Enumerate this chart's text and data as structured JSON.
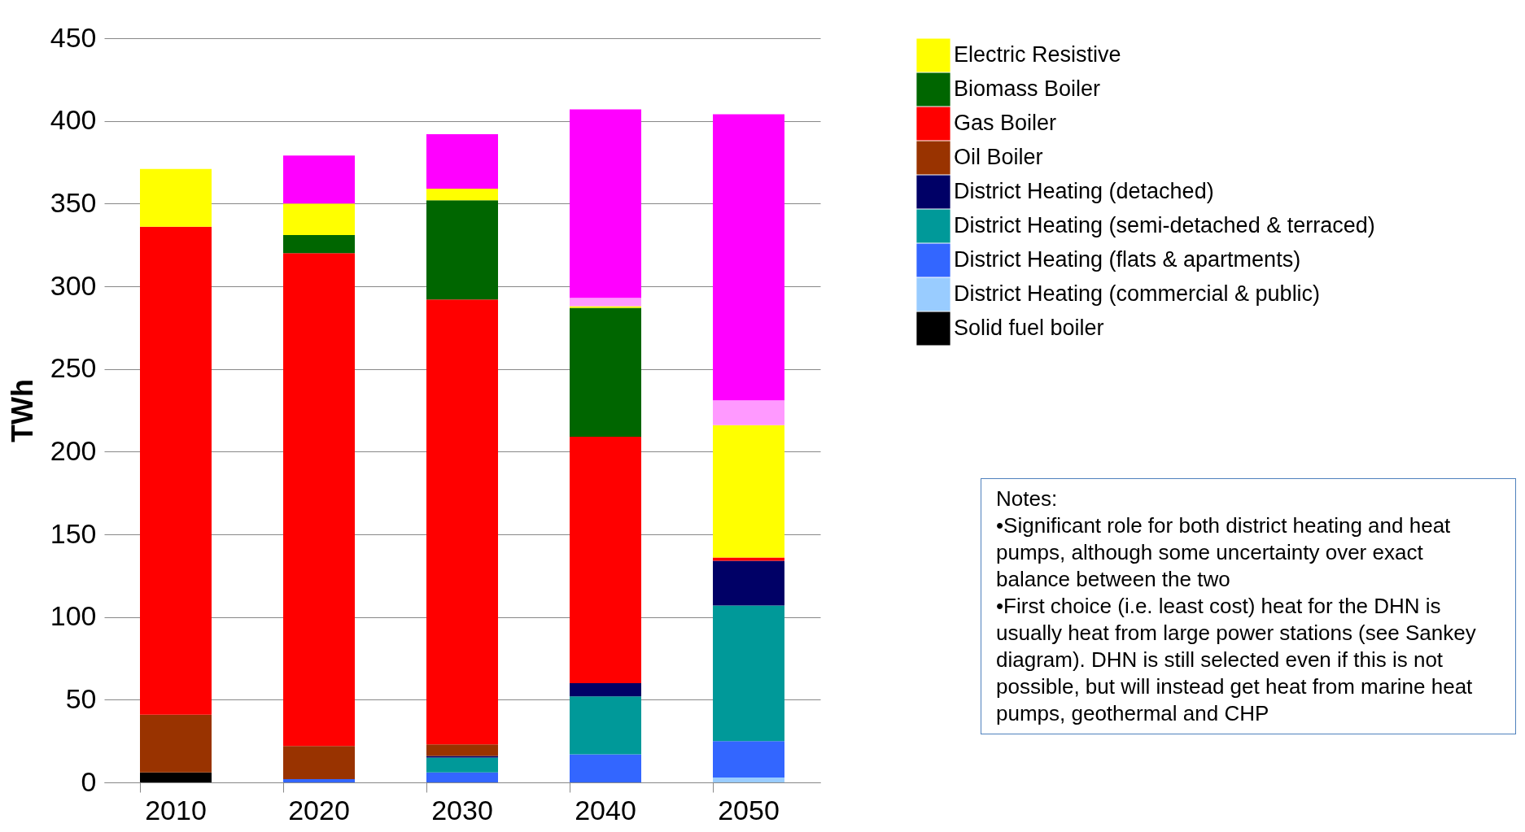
{
  "chart_data": {
    "type": "bar",
    "stacked": true,
    "ylabel": "TWh",
    "categories": [
      "2010",
      "2020",
      "2030",
      "2040",
      "2050"
    ],
    "ylim": [
      0,
      450
    ],
    "yticks": [
      0,
      50,
      100,
      150,
      200,
      250,
      300,
      350,
      400,
      450
    ],
    "grid": "y",
    "legend": "top right",
    "series": [
      {
        "name": "Solid fuel boiler",
        "color": "#000000",
        "values": [
          6,
          0,
          0,
          0,
          0
        ]
      },
      {
        "name": "District Heating (commercial & public)",
        "color": "#99ccff",
        "values": [
          0,
          0,
          0,
          0,
          3
        ]
      },
      {
        "name": "District Heating (flats & apartments)",
        "color": "#3366ff",
        "values": [
          0,
          2,
          6,
          17,
          22
        ]
      },
      {
        "name": "District Heating (semi-detached & terraced)",
        "color": "#009999",
        "values": [
          0,
          0,
          9,
          35,
          82
        ]
      },
      {
        "name": "District Heating (detached)",
        "color": "#000066",
        "values": [
          0,
          0,
          1,
          8,
          27
        ]
      },
      {
        "name": "Oil Boiler",
        "color": "#993300",
        "values": [
          35,
          20,
          7,
          0,
          0
        ]
      },
      {
        "name": "Gas Boiler",
        "color": "#ff0000",
        "values": [
          295,
          298,
          269,
          149,
          2
        ]
      },
      {
        "name": "Biomass Boiler",
        "color": "#006600",
        "values": [
          0,
          11,
          60,
          78,
          0
        ]
      },
      {
        "name": "Electric Resistive",
        "color": "#ffff00",
        "values": [
          35,
          19,
          7,
          1,
          80
        ]
      },
      {
        "color": "#ff99ff",
        "values": [
          0,
          0,
          0,
          5,
          15
        ]
      },
      {
        "color": "#ff00ff",
        "values": [
          0,
          29,
          33,
          114,
          173
        ]
      }
    ],
    "annotations": [
      "Notes:",
      "•Significant role for both district heating and heat pumps, although some uncertainty over exact balance between the two",
      "•First choice (i.e. least cost) heat for the DHN is usually heat from large power stations (see Sankey diagram). DHN is still selected even if this is not possible, but will instead get heat from marine heat pumps, geothermal and CHP"
    ]
  }
}
